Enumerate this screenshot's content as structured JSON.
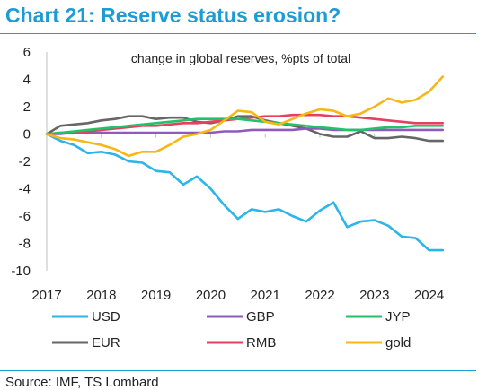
{
  "header": {
    "title": "Chart 21: Reserve status erosion?"
  },
  "footer": {
    "source": "Source: IMF, TS Lombard"
  },
  "colors": {
    "accent": "#1d9bd4"
  },
  "chart_data": {
    "type": "line",
    "title": "",
    "subtitle": "change in global reserves, %pts of total",
    "xlabel": "",
    "ylabel": "",
    "xlim": [
      2017,
      2024.5
    ],
    "ylim": [
      -10,
      6
    ],
    "x_ticks": [
      "2017",
      "2018",
      "2019",
      "2020",
      "2021",
      "2022",
      "2023",
      "2024"
    ],
    "y_ticks": [
      "6",
      "4",
      "2",
      "0",
      "-2",
      "-4",
      "-6",
      "-8",
      "-10"
    ],
    "grid": false,
    "legend_position": "bottom",
    "x": [
      2017,
      2017.25,
      2017.5,
      2017.75,
      2018,
      2018.25,
      2018.5,
      2018.75,
      2019,
      2019.25,
      2019.5,
      2019.75,
      2020,
      2020.25,
      2020.5,
      2020.75,
      2021,
      2021.25,
      2021.5,
      2021.75,
      2022,
      2022.25,
      2022.5,
      2022.75,
      2023,
      2023.25,
      2023.5,
      2023.75,
      2024,
      2024.25
    ],
    "series": [
      {
        "name": "USD",
        "color": "#2bb5ea",
        "values": [
          0,
          -0.5,
          -0.8,
          -1.4,
          -1.3,
          -1.5,
          -2.0,
          -2.1,
          -2.7,
          -2.8,
          -3.7,
          -3.1,
          -4.0,
          -5.2,
          -6.2,
          -5.5,
          -5.7,
          -5.5,
          -6.0,
          -6.4,
          -5.6,
          -5.0,
          -6.8,
          -6.4,
          -6.3,
          -6.7,
          -7.5,
          -7.6,
          -8.5,
          -8.5
        ]
      },
      {
        "name": "GBP",
        "color": "#8e5bbd",
        "values": [
          0,
          0.0,
          0.1,
          0.1,
          0.1,
          0.1,
          0.1,
          0.1,
          0.1,
          0.1,
          0.1,
          0.1,
          0.1,
          0.2,
          0.2,
          0.3,
          0.3,
          0.3,
          0.3,
          0.4,
          0.4,
          0.3,
          0.3,
          0.3,
          0.3,
          0.3,
          0.3,
          0.3,
          0.3,
          0.3
        ]
      },
      {
        "name": "JYP",
        "color": "#22c26a",
        "values": [
          0,
          0.1,
          0.2,
          0.3,
          0.4,
          0.5,
          0.6,
          0.7,
          0.8,
          0.9,
          1.0,
          1.1,
          1.1,
          1.1,
          1.1,
          1.0,
          0.9,
          0.8,
          0.7,
          0.6,
          0.5,
          0.4,
          0.3,
          0.3,
          0.4,
          0.5,
          0.5,
          0.6,
          0.6,
          0.6
        ]
      },
      {
        "name": "EUR",
        "color": "#666666",
        "values": [
          0,
          0.6,
          0.7,
          0.8,
          1.0,
          1.1,
          1.3,
          1.3,
          1.1,
          1.2,
          1.2,
          0.9,
          0.8,
          1.0,
          1.3,
          1.3,
          1.0,
          0.8,
          0.6,
          0.4,
          0.0,
          -0.2,
          -0.2,
          0.2,
          -0.3,
          -0.3,
          -0.2,
          -0.3,
          -0.5,
          -0.5
        ]
      },
      {
        "name": "RMB",
        "color": "#e6405e",
        "values": [
          0,
          0.1,
          0.1,
          0.2,
          0.3,
          0.4,
          0.5,
          0.6,
          0.6,
          0.7,
          0.8,
          0.8,
          0.9,
          1.0,
          1.1,
          1.2,
          1.3,
          1.3,
          1.4,
          1.4,
          1.4,
          1.3,
          1.3,
          1.2,
          1.1,
          1.0,
          0.9,
          0.8,
          0.8,
          0.8
        ]
      },
      {
        "name": "gold",
        "color": "#f7b716",
        "values": [
          0,
          -0.3,
          -0.4,
          -0.6,
          -0.8,
          -1.1,
          -1.6,
          -1.3,
          -1.3,
          -0.8,
          -0.2,
          0.0,
          0.3,
          1.0,
          1.7,
          1.6,
          0.9,
          0.7,
          1.1,
          1.5,
          1.8,
          1.7,
          1.3,
          1.5,
          2.0,
          2.6,
          2.3,
          2.5,
          3.1,
          4.2
        ]
      }
    ]
  }
}
